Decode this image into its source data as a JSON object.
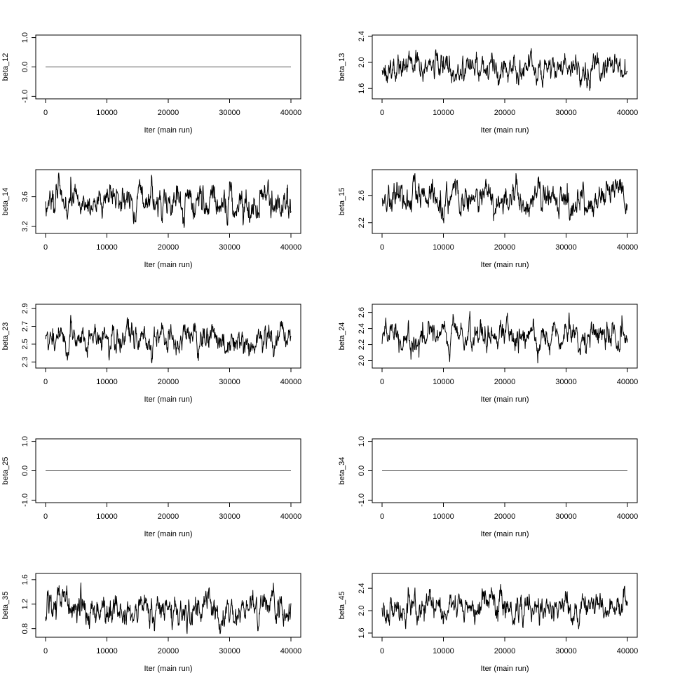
{
  "chart_data": [
    {
      "type": "line",
      "ylabel": "beta_12",
      "xlabel": "Iter (main run)",
      "xlim": [
        0,
        40000
      ],
      "ylim": [
        -1.0,
        1.0
      ],
      "yticks": [
        "-1.0",
        "0.0",
        "1.0"
      ],
      "xticks": [
        "0",
        "10000",
        "20000",
        "30000",
        "40000"
      ],
      "constant": true,
      "series": [
        {
          "mean": 0.0,
          "sd": 0.0,
          "min": 0.0,
          "max": 0.0
        }
      ],
      "color": "#000000"
    },
    {
      "type": "line",
      "ylabel": "beta_13",
      "xlabel": "Iter (main run)",
      "xlim": [
        0,
        40000
      ],
      "ylim": [
        1.48,
        2.38
      ],
      "yticks": [
        "1.6",
        "2.0",
        "2.4"
      ],
      "xticks": [
        "0",
        "10000",
        "20000",
        "30000",
        "40000"
      ],
      "constant": false,
      "series": [
        {
          "mean": 1.93,
          "sd": 0.12,
          "min": 1.5,
          "max": 2.36
        }
      ],
      "color": "#000000"
    },
    {
      "type": "line",
      "ylabel": "beta_14",
      "xlabel": "Iter (main run)",
      "xlim": [
        0,
        40000
      ],
      "ylim": [
        3.14,
        3.93
      ],
      "yticks": [
        "3.2",
        "3.6"
      ],
      "xticks": [
        "0",
        "10000",
        "20000",
        "30000",
        "40000"
      ],
      "constant": false,
      "series": [
        {
          "mean": 3.53,
          "sd": 0.12,
          "min": 3.15,
          "max": 3.92
        }
      ],
      "color": "#000000"
    },
    {
      "type": "line",
      "ylabel": "beta_15",
      "xlabel": "Iter (main run)",
      "xlim": [
        0,
        40000
      ],
      "ylim": [
        2.08,
        2.94
      ],
      "yticks": [
        "2.2",
        "2.6"
      ],
      "xticks": [
        "0",
        "10000",
        "20000",
        "30000",
        "40000"
      ],
      "constant": false,
      "series": [
        {
          "mean": 2.53,
          "sd": 0.13,
          "min": 2.1,
          "max": 2.92
        }
      ],
      "color": "#000000"
    },
    {
      "type": "line",
      "ylabel": "beta_23",
      "xlabel": "Iter (main run)",
      "xlim": [
        0,
        40000
      ],
      "ylim": [
        2.26,
        2.92
      ],
      "yticks": [
        "2.3",
        "2.5",
        "2.7",
        "2.9"
      ],
      "xticks": [
        "0",
        "10000",
        "20000",
        "30000",
        "40000"
      ],
      "constant": false,
      "series": [
        {
          "mean": 2.56,
          "sd": 0.09,
          "min": 2.27,
          "max": 2.91
        }
      ],
      "color": "#000000"
    },
    {
      "type": "line",
      "ylabel": "beta_24",
      "xlabel": "Iter (main run)",
      "xlim": [
        0,
        40000
      ],
      "ylim": [
        1.94,
        2.67
      ],
      "yticks": [
        "2.0",
        "2.2",
        "2.4",
        "2.6"
      ],
      "xticks": [
        "0",
        "10000",
        "20000",
        "30000",
        "40000"
      ],
      "constant": false,
      "series": [
        {
          "mean": 2.31,
          "sd": 0.1,
          "min": 1.96,
          "max": 2.65
        }
      ],
      "color": "#000000"
    },
    {
      "type": "line",
      "ylabel": "beta_25",
      "xlabel": "Iter (main run)",
      "xlim": [
        0,
        40000
      ],
      "ylim": [
        -1.0,
        1.0
      ],
      "yticks": [
        "-1.0",
        "0.0",
        "1.0"
      ],
      "xticks": [
        "0",
        "10000",
        "20000",
        "30000",
        "40000"
      ],
      "constant": true,
      "series": [
        {
          "mean": 0.0,
          "sd": 0.0,
          "min": 0.0,
          "max": 0.0
        }
      ],
      "color": "#000000"
    },
    {
      "type": "line",
      "ylabel": "beta_34",
      "xlabel": "Iter (main run)",
      "xlim": [
        0,
        40000
      ],
      "ylim": [
        -1.0,
        1.0
      ],
      "yticks": [
        "-1.0",
        "0.0",
        "1.0"
      ],
      "xticks": [
        "0",
        "10000",
        "20000",
        "30000",
        "40000"
      ],
      "constant": true,
      "series": [
        {
          "mean": 0.0,
          "sd": 0.0,
          "min": 0.0,
          "max": 0.0
        }
      ],
      "color": "#000000"
    },
    {
      "type": "line",
      "ylabel": "beta_35",
      "xlabel": "Iter (main run)",
      "xlim": [
        0,
        40000
      ],
      "ylim": [
        0.7,
        1.66
      ],
      "yticks": [
        "0.8",
        "1.2",
        "1.6"
      ],
      "xticks": [
        "0",
        "10000",
        "20000",
        "30000",
        "40000"
      ],
      "constant": false,
      "series": [
        {
          "mean": 1.13,
          "sd": 0.14,
          "min": 0.72,
          "max": 1.64
        }
      ],
      "color": "#000000"
    },
    {
      "type": "line",
      "ylabel": "beta_45",
      "xlabel": "Iter (main run)",
      "xlim": [
        0,
        40000
      ],
      "ylim": [
        1.57,
        2.62
      ],
      "yticks": [
        "1.6",
        "2.0",
        "2.4"
      ],
      "xticks": [
        "0",
        "10000",
        "20000",
        "30000",
        "40000"
      ],
      "constant": false,
      "series": [
        {
          "mean": 2.05,
          "sd": 0.15,
          "min": 1.58,
          "max": 2.6
        }
      ],
      "color": "#000000"
    }
  ]
}
